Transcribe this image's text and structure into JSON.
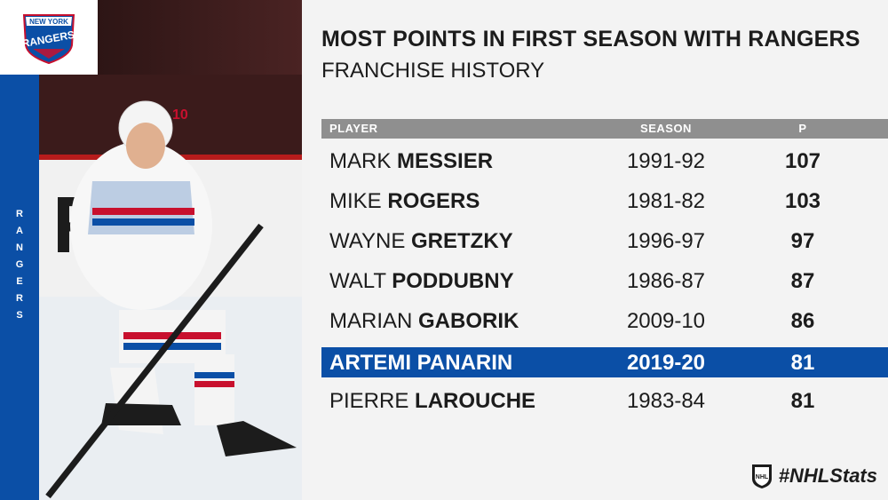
{
  "logo": {
    "line1": "NEW YORK",
    "line2": "RANGERS"
  },
  "sidebar_text": "RANGERS",
  "player_photo": {
    "jersey_number": "10"
  },
  "title": "MOST POINTS IN FIRST SEASON WITH RANGERS",
  "subtitle": "FRANCHISE HISTORY",
  "table": {
    "columns": [
      "PLAYER",
      "SEASON",
      "P"
    ],
    "rows": [
      {
        "first": "MARK",
        "last": "MESSIER",
        "season": "1991-92",
        "points": "107",
        "highlight": false
      },
      {
        "first": "MIKE",
        "last": "ROGERS",
        "season": "1981-82",
        "points": "103",
        "highlight": false
      },
      {
        "first": "WAYNE",
        "last": "GRETZKY",
        "season": "1996-97",
        "points": "97",
        "highlight": false
      },
      {
        "first": "WALT",
        "last": "PODDUBNY",
        "season": "1986-87",
        "points": "87",
        "highlight": false
      },
      {
        "first": "MARIAN",
        "last": "GABORIK",
        "season": "2009-10",
        "points": "86",
        "highlight": false
      },
      {
        "first": "ARTEMI",
        "last": "PANARIN",
        "season": "2019-20",
        "points": "81",
        "highlight": true
      },
      {
        "first": "PIERRE",
        "last": "LAROUCHE",
        "season": "1983-84",
        "points": "81",
        "highlight": false
      }
    ]
  },
  "footer": {
    "hashtag": "#NHLStats",
    "logo_text": "NHL"
  },
  "colors": {
    "blue": "#0b4fa6",
    "red": "#c8102e",
    "header_gray": "#8f8f8f"
  }
}
